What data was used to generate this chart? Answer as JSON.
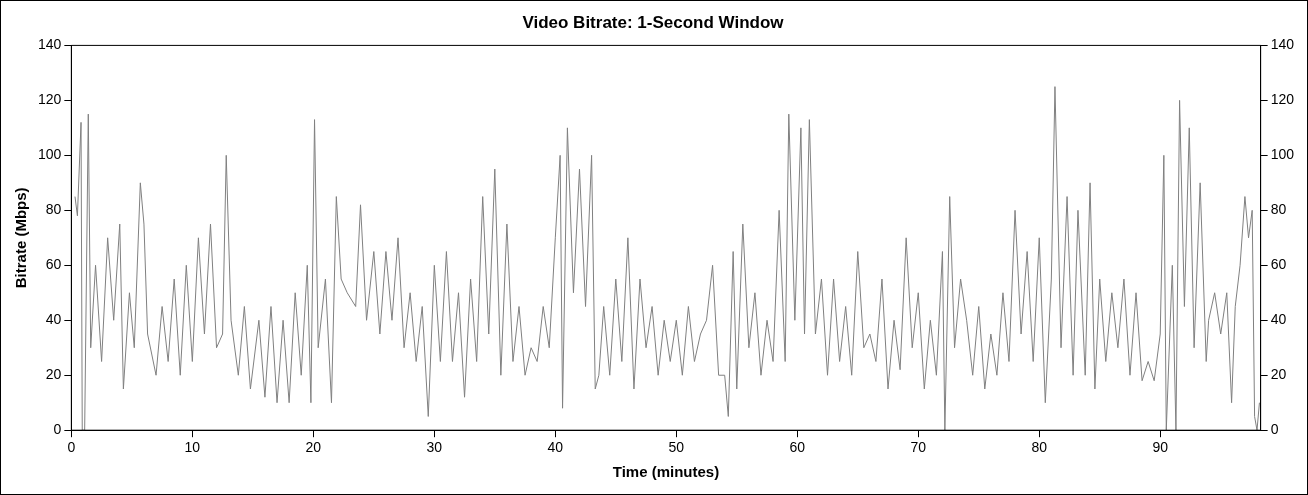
{
  "chart_data": {
    "type": "line",
    "title": "Video Bitrate: 1-Second Window",
    "xlabel": "Time (minutes)",
    "ylabel": "Bitrate (Mbps)",
    "xlim": [
      0,
      98.3
    ],
    "xticks": [
      0,
      10,
      20,
      30,
      40,
      50,
      60,
      70,
      80,
      90
    ],
    "ylim": [
      0,
      140
    ],
    "yticks": [
      0,
      20,
      40,
      60,
      80,
      100,
      120,
      140
    ],
    "y2lim": [
      0,
      140
    ],
    "y2ticks": [
      0,
      20,
      40,
      60,
      80,
      100,
      120,
      140
    ],
    "grid": false,
    "series": [
      {
        "color": "#808080",
        "x": [
          0.3,
          0.5,
          0.8,
          0.9,
          1.1,
          1.4,
          1.6,
          2,
          2.5,
          3,
          3.5,
          4,
          4.3,
          4.8,
          5.2,
          5.7,
          6,
          6.3,
          7,
          7.5,
          8,
          8.5,
          9,
          9.5,
          10,
          10.5,
          11,
          11.5,
          12,
          12.5,
          12.8,
          13.2,
          13.8,
          14.3,
          14.8,
          15.5,
          16,
          16.5,
          17,
          17.5,
          18,
          18.5,
          19,
          19.5,
          19.8,
          20.1,
          20.4,
          21,
          21.5,
          21.9,
          22.3,
          22.8,
          23.5,
          23.9,
          24.4,
          25,
          25.5,
          26,
          26.5,
          27,
          27.5,
          28,
          28.5,
          29,
          29.5,
          30,
          30.5,
          31,
          31.5,
          32,
          32.5,
          33,
          33.5,
          34,
          34.5,
          35,
          35.5,
          36,
          36.5,
          37,
          37.5,
          38,
          38.5,
          39,
          39.5,
          40,
          40.4,
          40.6,
          41,
          41.5,
          42,
          42.5,
          43,
          43.3,
          43.6,
          44,
          44.5,
          45,
          45.5,
          46,
          46.5,
          47,
          47.5,
          48,
          48.5,
          49,
          49.5,
          50,
          50.5,
          51,
          51.5,
          52,
          52.5,
          53,
          53.5,
          54,
          54.3,
          54.7,
          55,
          55.5,
          56,
          56.5,
          57,
          57.5,
          58,
          58.5,
          59,
          59.3,
          59.8,
          60.3,
          60.6,
          61,
          61.5,
          62,
          62.5,
          63,
          63.5,
          64,
          64.5,
          65,
          65.5,
          66,
          66.5,
          67,
          67.5,
          68,
          68.5,
          69,
          69.5,
          70,
          70.5,
          71,
          71.5,
          72,
          72.2,
          72.6,
          73,
          73.5,
          74,
          74.5,
          75,
          75.5,
          76,
          76.5,
          77,
          77.5,
          78,
          78.5,
          79,
          79.5,
          80,
          80.5,
          81,
          81.3,
          81.8,
          82.3,
          82.8,
          83.2,
          83.8,
          84.2,
          84.6,
          85,
          85.5,
          86,
          86.5,
          87,
          87.5,
          88,
          88.5,
          89,
          89.5,
          90,
          90.3,
          90.5,
          91,
          91.3,
          91.6,
          92,
          92.4,
          92.8,
          93.3,
          93.8,
          94,
          94.5,
          95,
          95.5,
          95.9,
          96.2,
          96.6,
          97,
          97.3,
          97.6,
          97.8,
          98,
          98.2
        ],
        "values": [
          85,
          78,
          112,
          0,
          0,
          115,
          30,
          60,
          25,
          70,
          40,
          75,
          15,
          50,
          30,
          90,
          75,
          35,
          20,
          45,
          25,
          55,
          20,
          60,
          25,
          70,
          35,
          75,
          30,
          35,
          100,
          40,
          20,
          45,
          15,
          40,
          12,
          45,
          10,
          40,
          10,
          50,
          20,
          60,
          10,
          113,
          30,
          55,
          10,
          85,
          55,
          50,
          45,
          82,
          40,
          65,
          35,
          65,
          40,
          70,
          30,
          50,
          25,
          45,
          5,
          60,
          25,
          65,
          25,
          50,
          12,
          55,
          25,
          85,
          35,
          95,
          20,
          75,
          25,
          45,
          20,
          30,
          25,
          45,
          30,
          70,
          100,
          8,
          110,
          50,
          95,
          45,
          100,
          15,
          20,
          45,
          20,
          55,
          25,
          70,
          15,
          55,
          30,
          45,
          20,
          40,
          25,
          40,
          20,
          45,
          25,
          35,
          40,
          60,
          20,
          20,
          5,
          65,
          15,
          75,
          30,
          50,
          20,
          40,
          25,
          80,
          25,
          115,
          40,
          110,
          35,
          113,
          35,
          55,
          20,
          55,
          25,
          45,
          20,
          65,
          30,
          35,
          25,
          55,
          15,
          40,
          22,
          70,
          30,
          50,
          15,
          40,
          20,
          65,
          0,
          85,
          30,
          55,
          40,
          20,
          45,
          15,
          35,
          20,
          50,
          25,
          80,
          35,
          65,
          25,
          70,
          10,
          55,
          125,
          30,
          85,
          20,
          80,
          20,
          90,
          15,
          55,
          25,
          50,
          30,
          55,
          20,
          50,
          18,
          25,
          18,
          35,
          100,
          0,
          60,
          0,
          120,
          45,
          110,
          30,
          90,
          25,
          40,
          50,
          35,
          50,
          10,
          45,
          60,
          85,
          70,
          80,
          5,
          0,
          10
        ]
      }
    ]
  }
}
